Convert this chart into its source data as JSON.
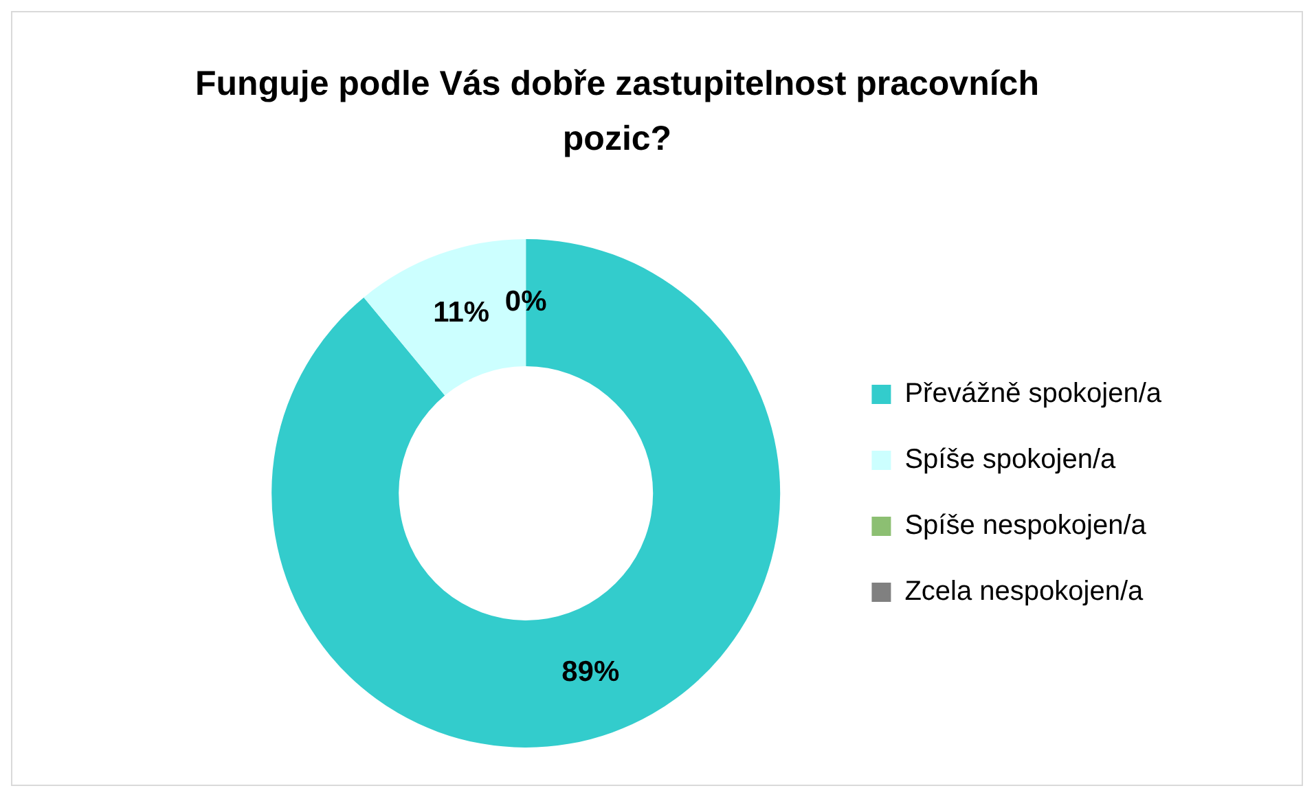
{
  "chart_data": {
    "type": "donut",
    "title": "Funguje podle Vás dobře zastupitelnost pracovních pozic?",
    "categories": [
      "Převážně spokojen/a",
      "Spíše spokojen/a",
      "Spíše nespokojen/a",
      "Zcela nespokojen/a"
    ],
    "values": [
      89,
      11,
      0,
      0
    ],
    "colors": [
      "#33cccc",
      "#ccffff",
      "#8cbf72",
      "#808080"
    ],
    "value_labels": [
      "89%",
      "11%",
      "0%",
      null
    ],
    "legend": "right"
  }
}
